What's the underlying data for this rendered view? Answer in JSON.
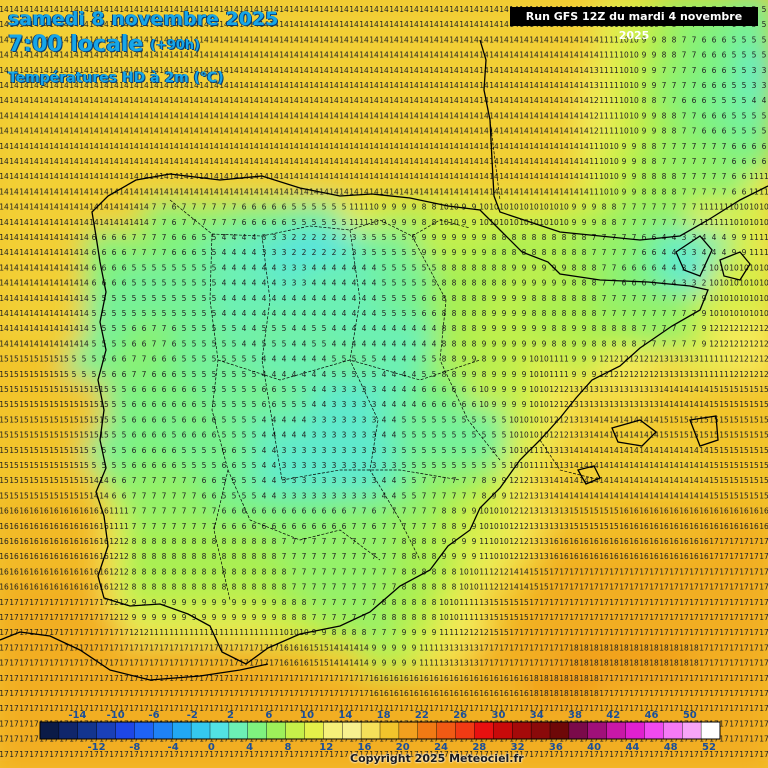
{
  "header": {
    "date": "samedi 8 novembre 2025",
    "time": "7:00 locale",
    "lead": "(+90h)",
    "variable": "Températures HD à 2m (°C)"
  },
  "run_info": "Run GFS 12Z du mardi 4 novembre 2025",
  "copyright": "Copyright 2025 Meteociel.fr",
  "legend": {
    "top_labels": [
      "-14",
      "-10",
      "-6",
      "-2",
      "2",
      "6",
      "10",
      "14",
      "18",
      "22",
      "26",
      "30",
      "34",
      "38",
      "42",
      "46",
      "50"
    ],
    "bottom_labels": [
      "-12",
      "-8",
      "-4",
      "0",
      "4",
      "8",
      "12",
      "16",
      "20",
      "24",
      "28",
      "32",
      "36",
      "40",
      "44",
      "48",
      "52"
    ],
    "colors": [
      "#0b1b47",
      "#10266b",
      "#13358f",
      "#1a40b8",
      "#1e47e6",
      "#1f63f5",
      "#1f82f5",
      "#22a8f3",
      "#35c9ee",
      "#52e2e3",
      "#6cf0b5",
      "#7ff27f",
      "#9ef05a",
      "#c6f04a",
      "#e5f04a",
      "#f5f07a",
      "#f7f08f",
      "#f5e05a",
      "#f2c42c",
      "#f2a01e",
      "#f07a14",
      "#f05a14",
      "#f03a14",
      "#e81010",
      "#c80a0a",
      "#a50a0a",
      "#8a0a0a",
      "#6e0808",
      "#7a0a4a",
      "#a0107a",
      "#c818a8",
      "#e020d0",
      "#f04af0",
      "#f57af5",
      "#f7a5f7",
      "#ffffff"
    ]
  },
  "map_data": {
    "value_grid_format": "each string is one row of 2m temperatures (degC); one char per column, 'a'=10 ... 'l'=21",
    "value_grid": [
      "eeeeeeeeeeeeeeeeeeeeeeeeeeeeeeeeebaa877765",
      "eeeeeeeeeeeeeeeeeeeeeeeeeeeeeeeeeba9876655",
      "eeeeeeeeeeeeeeeeeeeeeeeeeeeeeeeedba9776653",
      "eeeeeeeeeeeeeeeeeeeeeeeeeeeeeeeecba8766554",
      "eeeeeeeeeeeeeeeeeeeeeeeeeeeeeeeecba9876655",
      "eeeeeeeeeeeeeeeeeeeeeeeeeeeeeeeeba98777766",
      "eeeeeeeeeeeeeeeeeeeeeeeeeeeeeeeeba9887776b",
      "eeeeeeee76777666555ba998a9aaaaa9987777bbaa",
      "eeeee667766544332223555999988888777643449b",
      "eeeee6655555444334444555888899988766432aaa",
      "eeeee5555555444444444556888998888777779aaa",
      "eeeee5567655545545444444889999898887779ccc",
      "ffff5567665555444455544589899ab99cccddbbcc",
      "ffffff56666555655433344666a99acdddddeeefff",
      "ffffff5665665544433334555555aacdeeeeffffff",
      "fffff55666556543333333555555abdeeeeeeeefff",
      "fffffe6777765543333334577789cdeeeeeeeeefff",
      "ggggggb7777766666667677789aacddfffgggggggg",
      "ggggggc8888888877777778899bacdggggggggghhh",
      "ggggggc888888888777777888abcefhhhhhhhhhhhh",
      "hhhhhhc99999999887777888abdffhhhhhhhhhhhhh",
      "hhhhhhhcbbbbbbbaa9887799bccfhhhhhhhhhhhhhh",
      "hhhhhhhhhhhhhhhggfee999bddhhhhhiiiiiiihhhh",
      "hhhhhhhhhhhhhhhhhhhhgggggggggiiiihhhhhhhhh",
      "hhhhhhhhhhhhhhhhhhhhhhhhhhhhhhhhhhhhhhhhhh",
      "hhhhhhhhhhhhhhhhhhhhhhhhhhhhhhhhhhhhhhhhhh"
    ]
  }
}
